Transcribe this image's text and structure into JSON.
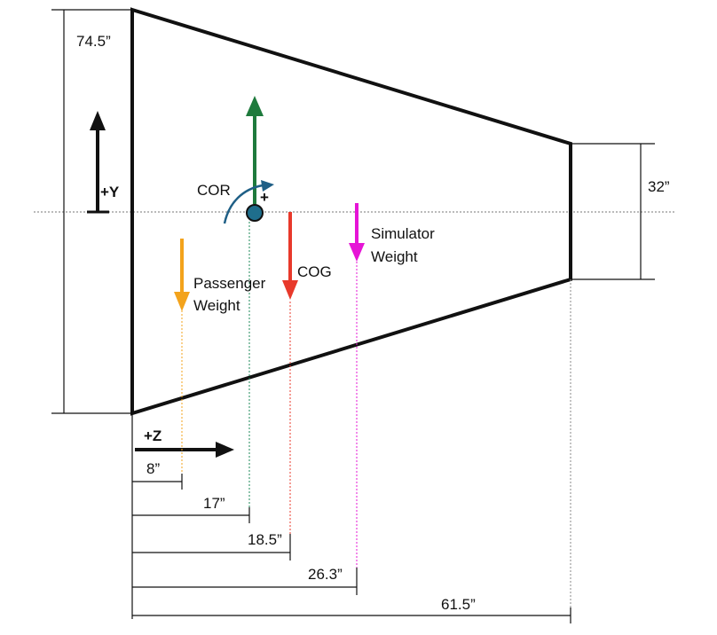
{
  "labels": {
    "height_left": "74.5”",
    "height_right": "32”",
    "plus_y": "+Y",
    "plus_z": "+Z",
    "cor": "COR",
    "cor_plus": "+",
    "cog": "COG",
    "passenger_line1": "Passenger",
    "passenger_line2": "Weight",
    "simulator_line1": "Simulator",
    "simulator_line2": "Weight"
  },
  "dimensions": {
    "dim_8": "8”",
    "dim_17": "17”",
    "dim_18_5": "18.5”",
    "dim_26_3": "26.3”",
    "dim_61_5": "61.5”"
  },
  "colors": {
    "outline": "#111111",
    "cor_arrow": "#1e7a3c",
    "cor_dot": "#1f6e8c",
    "cog_arrow": "#e8392b",
    "passenger_arrow": "#f3a31c",
    "simulator_arrow": "#e614d6",
    "leader_cor": "#1e8a5a"
  }
}
